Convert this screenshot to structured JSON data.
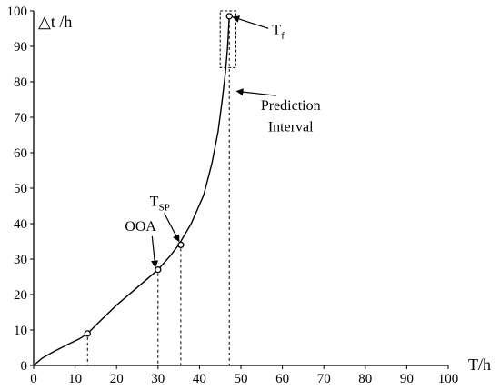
{
  "chart_data": {
    "type": "line",
    "xlabel": "T/h",
    "ylabel": "△t /h",
    "xlim": [
      0,
      100
    ],
    "ylim": [
      0,
      100
    ],
    "x_ticks": [
      0,
      10,
      20,
      30,
      40,
      50,
      60,
      70,
      80,
      90,
      100
    ],
    "y_ticks": [
      0,
      10,
      20,
      30,
      40,
      50,
      60,
      70,
      80,
      90,
      100
    ],
    "grid": false,
    "series": [
      {
        "x": [
          0,
          2,
          5,
          8,
          11,
          13,
          16,
          20,
          25,
          30,
          33,
          35,
          38,
          41,
          43,
          44.5,
          45.5,
          46.3,
          46.8,
          47.2
        ],
        "y": [
          0,
          2,
          4,
          5.8,
          7.5,
          9,
          12.5,
          17,
          22,
          27,
          31,
          34,
          40,
          48,
          57,
          66,
          75,
          83,
          90,
          98.5
        ]
      }
    ],
    "marked_points": [
      {
        "x": 13,
        "y": 9
      },
      {
        "x": 30,
        "y": 27
      },
      {
        "x": 35.5,
        "y": 34
      },
      {
        "x": 47.2,
        "y": 98.5
      }
    ],
    "annotations": [
      {
        "text": "OOA",
        "x": 22,
        "y": 38
      },
      {
        "text": "T",
        "sub": "SP",
        "x": 28,
        "y": 45
      },
      {
        "text": "T",
        "sub": "f",
        "x": 57.5,
        "y": 93.5
      },
      {
        "text": "Prediction",
        "x": 62,
        "y": 72
      },
      {
        "text": "Interval",
        "x": 62,
        "y": 66
      }
    ],
    "prediction_interval": {
      "x": [
        45,
        48.8
      ],
      "y": [
        84,
        100
      ]
    }
  }
}
